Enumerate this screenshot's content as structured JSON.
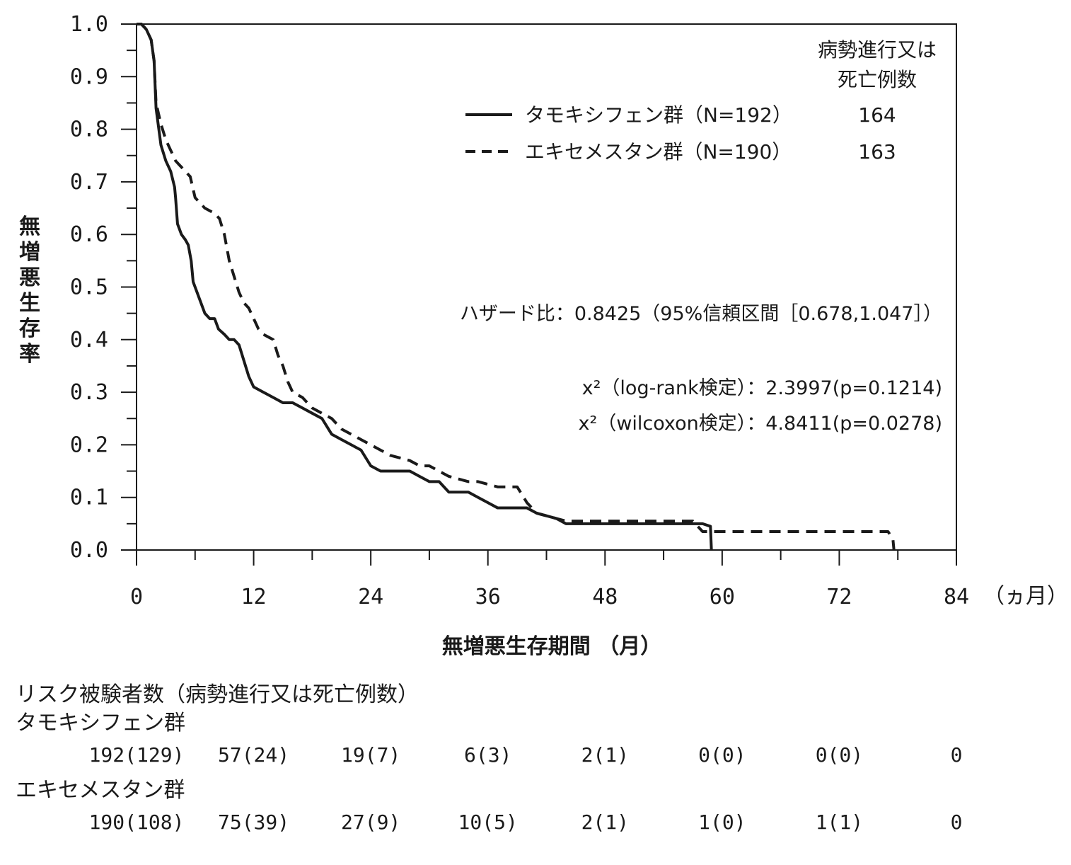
{
  "chart_data": {
    "type": "line",
    "subtype": "kaplan-meier",
    "ylabel": "無増悪生存率",
    "xlabel": "無増悪生存期間 （月）",
    "x_unit_label": "（ヵ月）",
    "xlim": [
      0,
      84
    ],
    "ylim": [
      0,
      1.0
    ],
    "x_ticks": [
      "0",
      "12",
      "24",
      "36",
      "48",
      "60",
      "72",
      "84"
    ],
    "y_ticks": [
      "0.0",
      "0.1",
      "0.2",
      "0.3",
      "0.4",
      "0.5",
      "0.6",
      "0.7",
      "0.8",
      "0.9",
      "1.0"
    ],
    "legend_header": [
      "病勢進行又は",
      "死亡例数"
    ],
    "series": [
      {
        "name": "タモキシフェン群（N=192）",
        "events": "164",
        "style": "solid",
        "color": "#1a1a1a",
        "points": [
          [
            0,
            1.0
          ],
          [
            0.5,
            1.0
          ],
          [
            1,
            0.99
          ],
          [
            1.5,
            0.97
          ],
          [
            1.8,
            0.93
          ],
          [
            2,
            0.84
          ],
          [
            2.5,
            0.77
          ],
          [
            3,
            0.74
          ],
          [
            3.5,
            0.72
          ],
          [
            3.9,
            0.69
          ],
          [
            4,
            0.67
          ],
          [
            4.2,
            0.62
          ],
          [
            4.6,
            0.6
          ],
          [
            5,
            0.59
          ],
          [
            5.3,
            0.58
          ],
          [
            5.6,
            0.55
          ],
          [
            5.8,
            0.51
          ],
          [
            6.2,
            0.49
          ],
          [
            6.6,
            0.47
          ],
          [
            7,
            0.45
          ],
          [
            7.5,
            0.44
          ],
          [
            8,
            0.44
          ],
          [
            8.4,
            0.42
          ],
          [
            9,
            0.41
          ],
          [
            9.5,
            0.4
          ],
          [
            10,
            0.4
          ],
          [
            10.5,
            0.39
          ],
          [
            11,
            0.36
          ],
          [
            11.5,
            0.33
          ],
          [
            12,
            0.31
          ],
          [
            13,
            0.3
          ],
          [
            14,
            0.29
          ],
          [
            15,
            0.28
          ],
          [
            16,
            0.28
          ],
          [
            17,
            0.27
          ],
          [
            18,
            0.26
          ],
          [
            19,
            0.25
          ],
          [
            20,
            0.22
          ],
          [
            21,
            0.21
          ],
          [
            22,
            0.2
          ],
          [
            23,
            0.19
          ],
          [
            24,
            0.16
          ],
          [
            25,
            0.15
          ],
          [
            26,
            0.15
          ],
          [
            28,
            0.15
          ],
          [
            29,
            0.14
          ],
          [
            30,
            0.13
          ],
          [
            31,
            0.13
          ],
          [
            32,
            0.11
          ],
          [
            34,
            0.11
          ],
          [
            35,
            0.1
          ],
          [
            36,
            0.09
          ],
          [
            37,
            0.08
          ],
          [
            38,
            0.08
          ],
          [
            40,
            0.08
          ],
          [
            41,
            0.07
          ],
          [
            42,
            0.065
          ],
          [
            43,
            0.06
          ],
          [
            44,
            0.05
          ],
          [
            58,
            0.05
          ],
          [
            58.8,
            0.045
          ],
          [
            58.9,
            0.0
          ]
        ]
      },
      {
        "name": "エキセメスタン群（N=190）",
        "events": "163",
        "style": "dashed",
        "color": "#1a1a1a",
        "points": [
          [
            0,
            1.0
          ],
          [
            0.5,
            1.0
          ],
          [
            1,
            0.99
          ],
          [
            1.5,
            0.97
          ],
          [
            1.8,
            0.93
          ],
          [
            2,
            0.85
          ],
          [
            2.5,
            0.81
          ],
          [
            3,
            0.78
          ],
          [
            3.5,
            0.76
          ],
          [
            4,
            0.74
          ],
          [
            5,
            0.72
          ],
          [
            5.5,
            0.71
          ],
          [
            6,
            0.67
          ],
          [
            6.5,
            0.66
          ],
          [
            7,
            0.65
          ],
          [
            8,
            0.64
          ],
          [
            8.5,
            0.63
          ],
          [
            9,
            0.6
          ],
          [
            9.5,
            0.55
          ],
          [
            10,
            0.52
          ],
          [
            10.5,
            0.49
          ],
          [
            11,
            0.47
          ],
          [
            11.5,
            0.46
          ],
          [
            12,
            0.44
          ],
          [
            12.5,
            0.42
          ],
          [
            13,
            0.41
          ],
          [
            14,
            0.4
          ],
          [
            14.5,
            0.37
          ],
          [
            15,
            0.35
          ],
          [
            15.5,
            0.32
          ],
          [
            16,
            0.3
          ],
          [
            17,
            0.29
          ],
          [
            18,
            0.27
          ],
          [
            19,
            0.26
          ],
          [
            20,
            0.25
          ],
          [
            21,
            0.23
          ],
          [
            22,
            0.22
          ],
          [
            23,
            0.21
          ],
          [
            24,
            0.2
          ],
          [
            25,
            0.19
          ],
          [
            26,
            0.18
          ],
          [
            28,
            0.17
          ],
          [
            29,
            0.16
          ],
          [
            30,
            0.16
          ],
          [
            31,
            0.15
          ],
          [
            32,
            0.14
          ],
          [
            34,
            0.13
          ],
          [
            35,
            0.13
          ],
          [
            37,
            0.12
          ],
          [
            38,
            0.12
          ],
          [
            39,
            0.12
          ],
          [
            40,
            0.09
          ],
          [
            41,
            0.07
          ],
          [
            43,
            0.06
          ],
          [
            44,
            0.055
          ],
          [
            57,
            0.055
          ],
          [
            57.5,
            0.045
          ],
          [
            58,
            0.035
          ],
          [
            77,
            0.035
          ],
          [
            77.5,
            0.02
          ],
          [
            77.6,
            0.0
          ]
        ]
      }
    ]
  },
  "stats": {
    "hazard": "ハザード比：0.8425（95%信頼区間［0.678,1.047］）",
    "logrank": "x²（log-rank検定）：2.3997(p=0.1214)",
    "wilcoxon": "x²（wilcoxon検定）：4.8411(p=0.0278)"
  },
  "risk_table": {
    "title": "リスク被験者数（病勢進行又は死亡例数）",
    "groups": [
      {
        "name": "タモキシフェン群",
        "values": [
          "192(129)",
          "57(24)",
          "19(7)",
          "6(3)",
          "2(1)",
          "0(0)",
          "0(0)",
          "0"
        ]
      },
      {
        "name": "エキセメスタン群",
        "values": [
          "190(108)",
          "75(39)",
          "27(9)",
          "10(5)",
          "2(1)",
          "1(0)",
          "1(1)",
          "0"
        ]
      }
    ]
  }
}
